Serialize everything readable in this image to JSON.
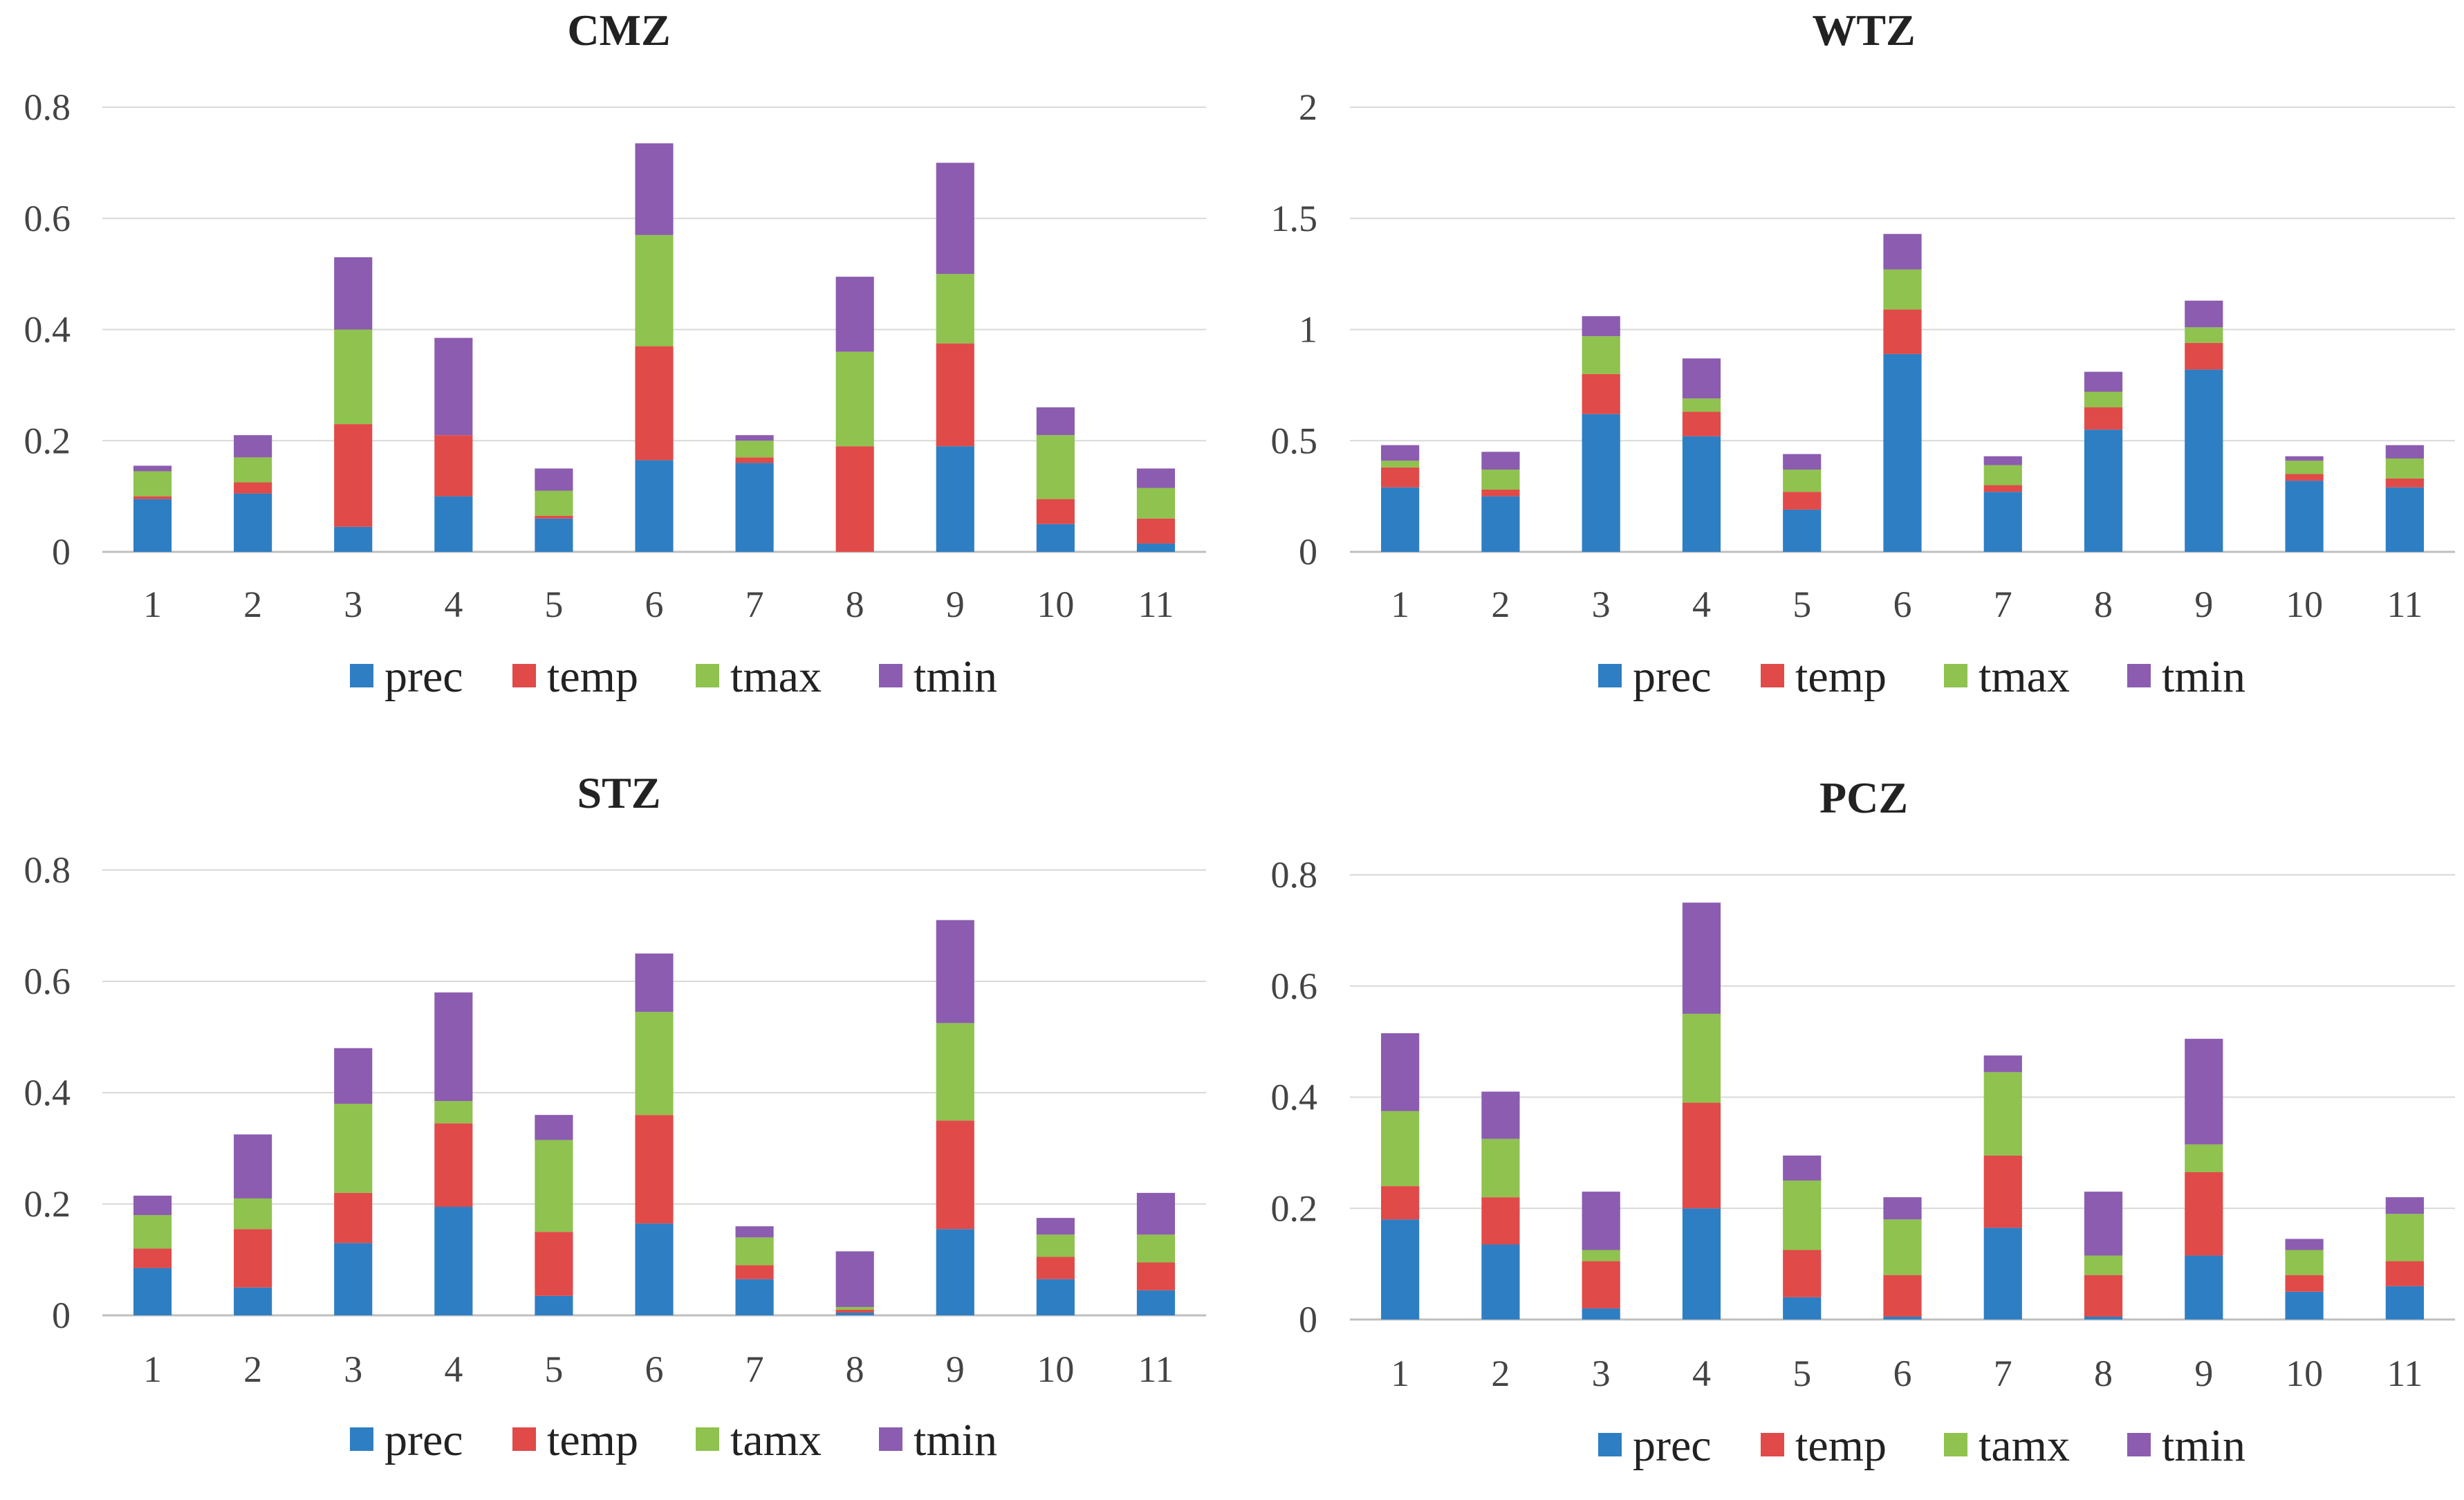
{
  "colors": {
    "prec": "#2E7EC3",
    "temp": "#E04A48",
    "tmax": "#8FC24E",
    "tmin": "#8B5CAF",
    "grid": "#D9D9D9",
    "axis": "#BFBFBF"
  },
  "chart_data": [
    {
      "type": "bar",
      "stacked": true,
      "title": "CMZ",
      "categories": [
        "1",
        "2",
        "3",
        "4",
        "5",
        "6",
        "7",
        "8",
        "9",
        "10",
        "11"
      ],
      "ylim": [
        0,
        0.8
      ],
      "yticks": [
        "0",
        "0.2",
        "0.4",
        "0.6",
        "0.8"
      ],
      "ytick_values": [
        0,
        0.2,
        0.4,
        0.6,
        0.8
      ],
      "series": [
        {
          "name": "prec",
          "key": "prec",
          "values": [
            0.095,
            0.105,
            0.045,
            0.1,
            0.06,
            0.165,
            0.16,
            0.0,
            0.19,
            0.05,
            0.015
          ]
        },
        {
          "name": "temp",
          "key": "temp",
          "values": [
            0.005,
            0.02,
            0.185,
            0.11,
            0.005,
            0.205,
            0.01,
            0.19,
            0.185,
            0.045,
            0.045
          ]
        },
        {
          "name": "tmax",
          "key": "tmax",
          "values": [
            0.045,
            0.045,
            0.17,
            0.0,
            0.045,
            0.2,
            0.03,
            0.17,
            0.125,
            0.115,
            0.055
          ]
        },
        {
          "name": "tmin",
          "key": "tmin",
          "values": [
            0.01,
            0.04,
            0.13,
            0.175,
            0.04,
            0.165,
            0.01,
            0.135,
            0.2,
            0.05,
            0.035
          ]
        }
      ],
      "legend": "bottom"
    },
    {
      "type": "bar",
      "stacked": true,
      "title": "WTZ",
      "categories": [
        "1",
        "2",
        "3",
        "4",
        "5",
        "6",
        "7",
        "8",
        "9",
        "10",
        "11"
      ],
      "ylim": [
        0,
        2
      ],
      "yticks": [
        "0",
        "0.5",
        "1",
        "1.5",
        "2"
      ],
      "ytick_values": [
        0,
        0.5,
        1,
        1.5,
        2
      ],
      "series": [
        {
          "name": "prec",
          "key": "prec",
          "values": [
            0.29,
            0.25,
            0.62,
            0.52,
            0.19,
            0.89,
            0.27,
            0.55,
            0.82,
            0.32,
            0.29
          ]
        },
        {
          "name": "temp",
          "key": "temp",
          "values": [
            0.09,
            0.03,
            0.18,
            0.11,
            0.08,
            0.2,
            0.03,
            0.1,
            0.12,
            0.03,
            0.04
          ]
        },
        {
          "name": "tmax",
          "key": "tmax",
          "values": [
            0.03,
            0.09,
            0.17,
            0.06,
            0.1,
            0.18,
            0.09,
            0.07,
            0.07,
            0.06,
            0.09
          ]
        },
        {
          "name": "tmin",
          "key": "tmin",
          "values": [
            0.07,
            0.08,
            0.09,
            0.18,
            0.07,
            0.16,
            0.04,
            0.09,
            0.12,
            0.02,
            0.06
          ]
        }
      ],
      "legend": "bottom"
    },
    {
      "type": "bar",
      "stacked": true,
      "title": "STZ",
      "categories": [
        "1",
        "2",
        "3",
        "4",
        "5",
        "6",
        "7",
        "8",
        "9",
        "10",
        "11"
      ],
      "ylim": [
        0,
        0.8
      ],
      "yticks": [
        "0",
        "0.2",
        "0.4",
        "0.6",
        "0.8"
      ],
      "ytick_values": [
        0,
        0.2,
        0.4,
        0.6,
        0.8
      ],
      "series": [
        {
          "name": "prec",
          "key": "prec",
          "values": [
            0.085,
            0.05,
            0.13,
            0.195,
            0.035,
            0.165,
            0.065,
            0.005,
            0.155,
            0.065,
            0.045
          ]
        },
        {
          "name": "temp",
          "key": "temp",
          "values": [
            0.035,
            0.105,
            0.09,
            0.15,
            0.115,
            0.195,
            0.025,
            0.005,
            0.195,
            0.04,
            0.05
          ]
        },
        {
          "name": "tamx",
          "key": "tmax",
          "values": [
            0.06,
            0.055,
            0.16,
            0.04,
            0.165,
            0.185,
            0.05,
            0.005,
            0.175,
            0.04,
            0.05
          ]
        },
        {
          "name": "tmin",
          "key": "tmin",
          "values": [
            0.035,
            0.115,
            0.1,
            0.195,
            0.045,
            0.105,
            0.02,
            0.1,
            0.185,
            0.03,
            0.075
          ]
        }
      ],
      "legend": "bottom"
    },
    {
      "type": "bar",
      "stacked": true,
      "title": "PCZ",
      "categories": [
        "1",
        "2",
        "3",
        "4",
        "5",
        "6",
        "7",
        "8",
        "9",
        "10",
        "11"
      ],
      "ylim": [
        0,
        0.8
      ],
      "yticks": [
        "0",
        "0.2",
        "0.4",
        "0.6",
        "0.8"
      ],
      "ytick_values": [
        0,
        0.2,
        0.4,
        0.6,
        0.8
      ],
      "series": [
        {
          "name": "prec",
          "key": "prec",
          "values": [
            0.18,
            0.135,
            0.02,
            0.2,
            0.04,
            0.005,
            0.165,
            0.005,
            0.115,
            0.05,
            0.06
          ]
        },
        {
          "name": "temp",
          "key": "temp",
          "values": [
            0.06,
            0.085,
            0.085,
            0.19,
            0.085,
            0.075,
            0.13,
            0.075,
            0.15,
            0.03,
            0.045
          ]
        },
        {
          "name": "tamx",
          "key": "tmax",
          "values": [
            0.135,
            0.105,
            0.02,
            0.16,
            0.125,
            0.1,
            0.15,
            0.035,
            0.05,
            0.045,
            0.085
          ]
        },
        {
          "name": "tmin",
          "key": "tmin",
          "values": [
            0.14,
            0.085,
            0.105,
            0.2,
            0.045,
            0.04,
            0.03,
            0.115,
            0.19,
            0.02,
            0.03
          ]
        }
      ],
      "legend": "bottom"
    }
  ]
}
